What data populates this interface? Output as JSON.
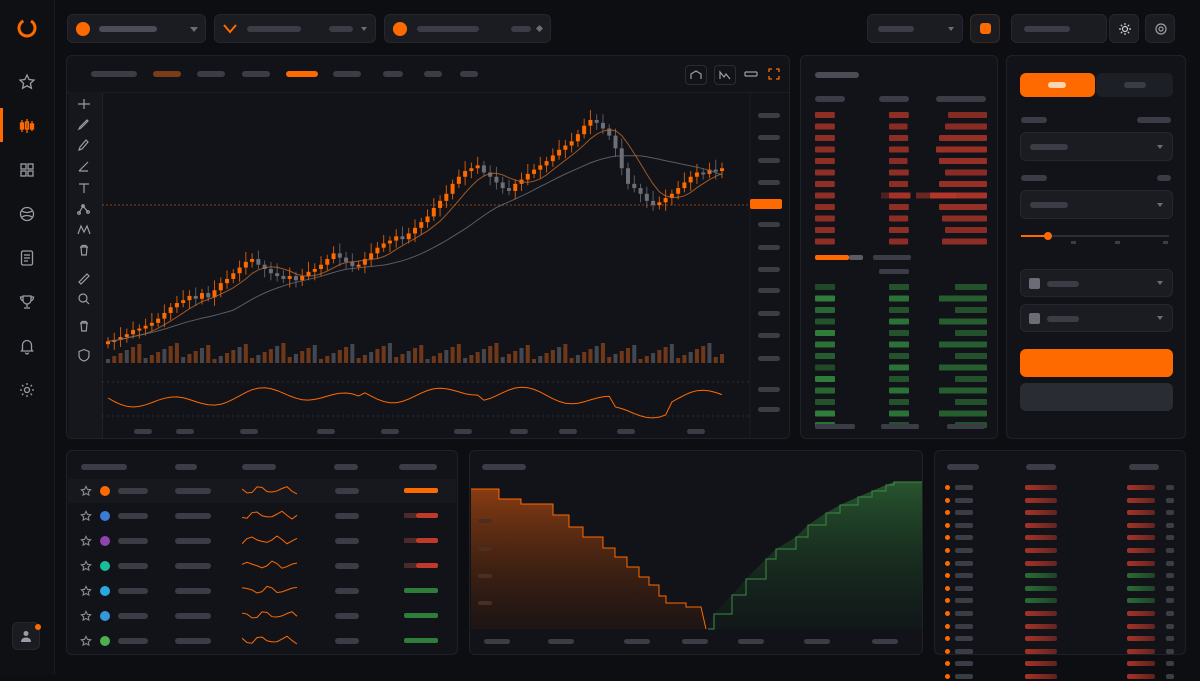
{
  "app": {
    "title": "",
    "accent": "#ff6a00",
    "buy_color": "#2e7d3a",
    "sell_color": "#c0392b"
  },
  "sidebar": {
    "items": [
      {
        "name": "favorites-icon"
      },
      {
        "name": "candlestick-icon",
        "active": true
      },
      {
        "name": "grid-icon"
      },
      {
        "name": "globe-icon"
      },
      {
        "name": "document-icon"
      },
      {
        "name": "trophy-icon"
      },
      {
        "name": "bell-icon"
      },
      {
        "name": "gear-icon"
      }
    ]
  },
  "topbar": {
    "selectors": [
      {
        "icon": "bitcoin-icon",
        "color": "#ff6a00"
      },
      {
        "icon": "chevron-logo-icon",
        "color": "#ff6a00"
      },
      {
        "icon": "coin-pair-icon",
        "color": "#ff6a00"
      }
    ],
    "right": [
      {
        "icon": "layout-select"
      },
      {
        "icon": "orange-square-icon"
      },
      {
        "icon": "account-field"
      },
      {
        "icon": "sun-icon"
      },
      {
        "icon": "settings-icon"
      }
    ]
  },
  "chart": {
    "active_timeframe_index": 4,
    "price_line_color": "#ff6a00",
    "toolbar_icons": [
      "crosshair-icon",
      "pencil-icon",
      "brush-icon",
      "trend-icon",
      "text-icon",
      "nodes-icon",
      "pattern-icon",
      "trash-icon",
      "ruler-icon",
      "zoom-icon",
      "delete-icon",
      "shield-icon"
    ],
    "header_icons": [
      "indicator-icon",
      "compare-icon",
      "layout-icon",
      "fullscreen-icon"
    ]
  },
  "trade": {
    "active_tab_index": 0,
    "slider_fraction": 0.18
  },
  "watchlist": {
    "rows": [
      {
        "coin_color": "#ff6a00",
        "change_color": "#ff6a00"
      },
      {
        "coin_color": "#3a7bd5",
        "change_color": "#c0392b"
      },
      {
        "coin_color": "#8e44ad",
        "change_color": "#c0392b"
      },
      {
        "coin_color": "#1abc9c",
        "change_color": "#c0392b"
      },
      {
        "coin_color": "#2aa9e0",
        "change_color": "#2e7d3a"
      },
      {
        "coin_color": "#3498db",
        "change_color": "#2e7d3a"
      },
      {
        "coin_color": "#4caf50",
        "change_color": "#2e7d3a"
      }
    ]
  }
}
